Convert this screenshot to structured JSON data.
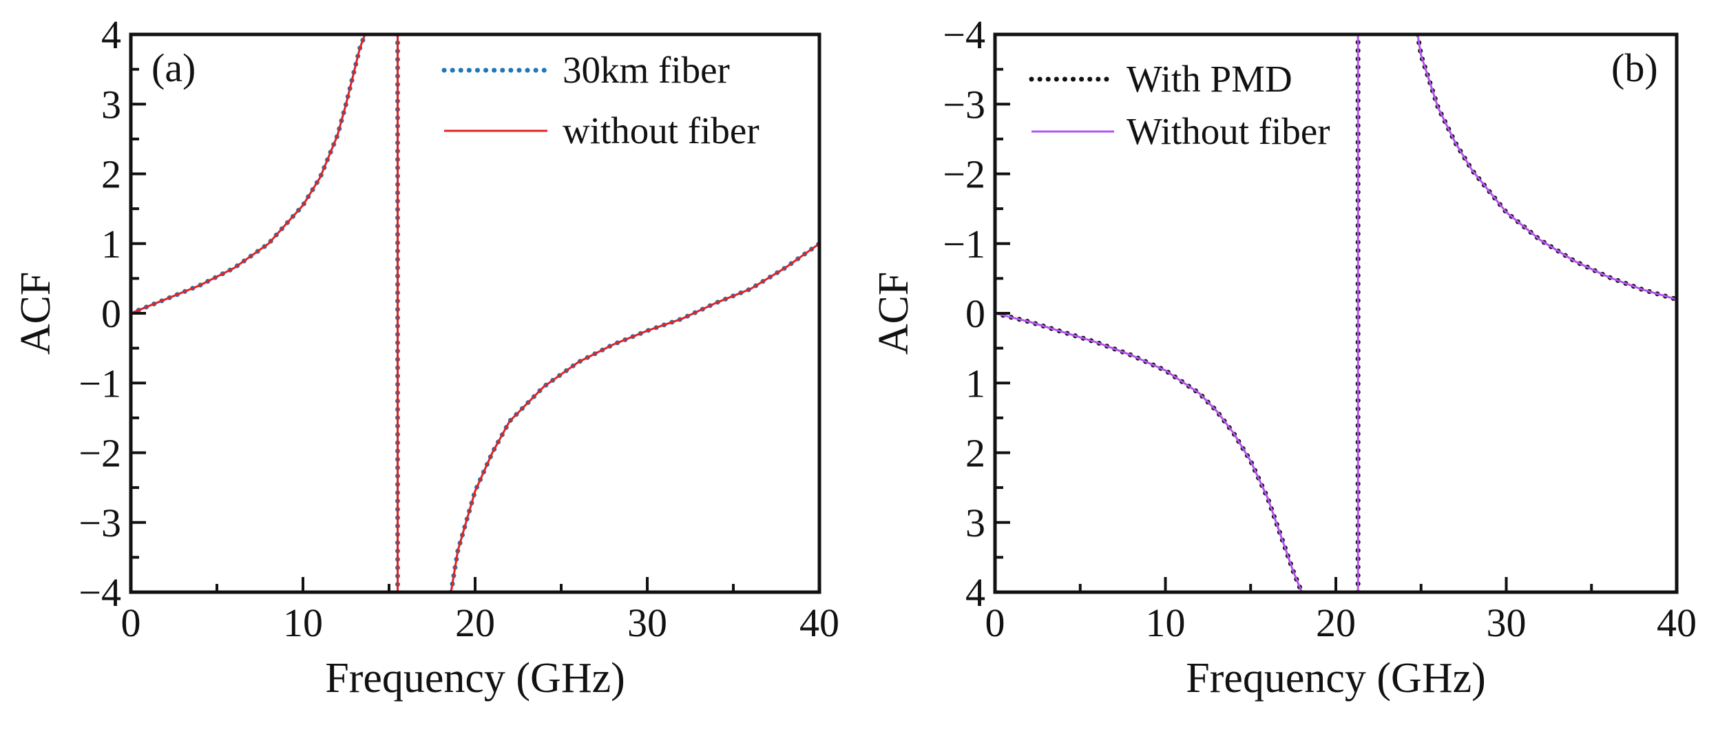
{
  "chart_data": [
    {
      "type": "line",
      "panel_label": "(a)",
      "xlabel": "Frequency (GHz)",
      "ylabel": "ACF",
      "xlim": [
        0,
        40
      ],
      "ylim": [
        -4,
        4
      ],
      "y_inverted": false,
      "xticks": [
        0,
        10,
        20,
        30,
        40
      ],
      "xtick_labels": [
        "0",
        "10",
        "20",
        "30",
        "40"
      ],
      "yticks": [
        4,
        3,
        2,
        1,
        0,
        -1,
        -2,
        -3,
        -4
      ],
      "ytick_labels": [
        "4",
        "3",
        "2",
        "1",
        "0",
        "−1",
        "−2",
        "−3",
        "−4"
      ],
      "legend_position": "top-right",
      "grid": false,
      "series": [
        {
          "name": "30km fiber",
          "style": "dotted",
          "color": "#1f77b4",
          "x": [
            0,
            2,
            4,
            6,
            8,
            10,
            11,
            12,
            12.5,
            13,
            13.3,
            13.6,
            null,
            15.5,
            15.5,
            null,
            18.6,
            19,
            20,
            21,
            22,
            24,
            26,
            28,
            30,
            32,
            34,
            36,
            38,
            40
          ],
          "y": [
            0,
            0.2,
            0.4,
            0.65,
            1.0,
            1.55,
            1.95,
            2.55,
            3.0,
            3.5,
            3.8,
            4.0,
            null,
            4.0,
            -4.0,
            null,
            -4.0,
            -3.4,
            -2.55,
            -2.0,
            -1.55,
            -1.05,
            -0.7,
            -0.45,
            -0.25,
            -0.08,
            0.15,
            0.35,
            0.65,
            1.0
          ]
        },
        {
          "name": "without fiber",
          "style": "solid",
          "color": "#e3221f",
          "x": [
            0,
            2,
            4,
            6,
            8,
            10,
            11,
            12,
            12.5,
            13,
            13.3,
            13.6,
            null,
            15.5,
            15.5,
            null,
            18.6,
            19,
            20,
            21,
            22,
            24,
            26,
            28,
            30,
            32,
            34,
            36,
            38,
            40
          ],
          "y": [
            0,
            0.2,
            0.4,
            0.65,
            1.0,
            1.55,
            1.95,
            2.55,
            3.0,
            3.5,
            3.8,
            4.0,
            null,
            4.0,
            -4.0,
            null,
            -4.0,
            -3.4,
            -2.55,
            -2.0,
            -1.55,
            -1.05,
            -0.7,
            -0.45,
            -0.25,
            -0.08,
            0.15,
            0.35,
            0.65,
            1.0
          ]
        }
      ]
    },
    {
      "type": "line",
      "panel_label": "(b)",
      "xlabel": "Frequency (GHz)",
      "ylabel": "ACF",
      "xlim": [
        0,
        40
      ],
      "ylim": [
        -4,
        4
      ],
      "y_inverted": true,
      "xticks": [
        0,
        10,
        20,
        30,
        40
      ],
      "xtick_labels": [
        "0",
        "10",
        "20",
        "30",
        "40"
      ],
      "yticks": [
        -4,
        -3,
        -2,
        -1,
        0,
        1,
        2,
        3,
        4
      ],
      "ytick_labels": [
        "−4",
        "−3",
        "−2",
        "−1",
        "0",
        "1",
        "2",
        "3",
        "4"
      ],
      "legend_position": "top-left",
      "grid": false,
      "series": [
        {
          "name": "With PMD",
          "style": "dotted",
          "color": "#111111",
          "x": [
            0,
            2,
            4,
            6,
            8,
            10,
            12,
            13,
            14,
            15,
            16,
            16.5,
            17,
            17.5,
            18,
            null,
            21.3,
            21.3,
            null,
            24.8,
            25,
            26,
            27,
            28,
            30,
            32,
            34,
            36,
            38,
            40
          ],
          "y": [
            0,
            0.12,
            0.27,
            0.42,
            0.6,
            0.82,
            1.15,
            1.4,
            1.72,
            2.12,
            2.65,
            3.0,
            3.35,
            3.7,
            4.0,
            null,
            4.0,
            -4.0,
            null,
            -4.0,
            -3.7,
            -2.95,
            -2.45,
            -2.05,
            -1.45,
            -1.05,
            -0.75,
            -0.52,
            -0.34,
            -0.2
          ]
        },
        {
          "name": "Without fiber",
          "style": "solid",
          "color": "#b455ee",
          "x": [
            0,
            2,
            4,
            6,
            8,
            10,
            12,
            13,
            14,
            15,
            16,
            16.5,
            17,
            17.5,
            18,
            null,
            21.3,
            21.3,
            null,
            24.8,
            25,
            26,
            27,
            28,
            30,
            32,
            34,
            36,
            38,
            40
          ],
          "y": [
            0,
            0.12,
            0.27,
            0.42,
            0.6,
            0.82,
            1.15,
            1.4,
            1.72,
            2.12,
            2.65,
            3.0,
            3.35,
            3.7,
            4.0,
            null,
            4.0,
            -4.0,
            null,
            -4.0,
            -3.7,
            -2.95,
            -2.45,
            -2.05,
            -1.45,
            -1.05,
            -0.75,
            -0.52,
            -0.34,
            -0.2
          ]
        }
      ]
    }
  ]
}
